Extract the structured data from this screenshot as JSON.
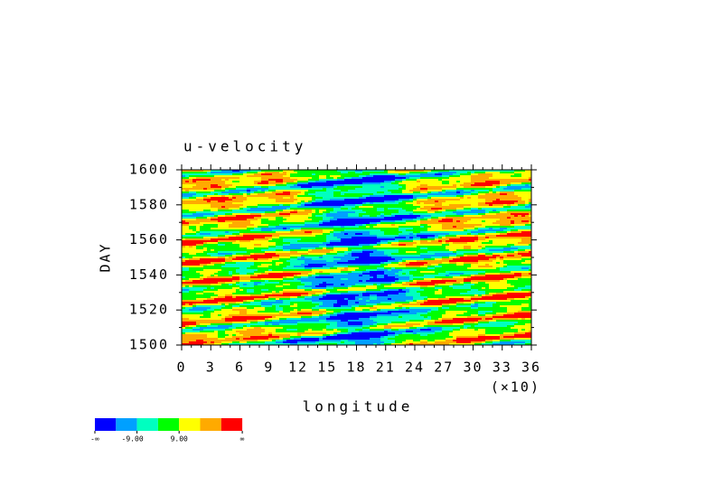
{
  "chart_data": {
    "type": "contour",
    "title": "u-velocity",
    "x_label": "longitude",
    "x_multiplier": "(×10)",
    "y_label": "DAY",
    "xlim": [
      0,
      36
    ],
    "xticks": [
      0,
      3,
      6,
      9,
      12,
      15,
      18,
      21,
      24,
      27,
      30,
      33,
      36
    ],
    "ylim": [
      1500,
      1600
    ],
    "yticks": [
      1500,
      1520,
      1540,
      1560,
      1580,
      1600
    ],
    "colorbar": {
      "colors": [
        "#0000ff",
        "#00a0ff",
        "#00ffc0",
        "#00ff00",
        "#ffff00",
        "#ffaa00",
        "#ff0000"
      ],
      "labels": [
        "-∞",
        "-9.00",
        "9.00",
        "∞"
      ]
    }
  }
}
